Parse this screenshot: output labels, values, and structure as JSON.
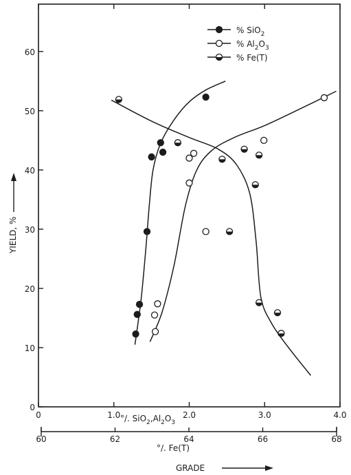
{
  "chart_data": {
    "type": "scatter",
    "title": "",
    "ylabel": "YIELD, %",
    "xlabel": "GRADE",
    "x_axis_primary": {
      "label": "% SiO2, Al2O3",
      "range": [
        0,
        4.0
      ],
      "ticks": [
        {
          "value": 0,
          "label": "0"
        },
        {
          "value": 1.0,
          "label": "1.0"
        },
        {
          "value": 2.0,
          "label": "2.0"
        },
        {
          "value": 3.0,
          "label": "3.0"
        },
        {
          "value": 4.0,
          "label": "4.0"
        }
      ]
    },
    "x_axis_secondary": {
      "label": "% Fe(T)",
      "range": [
        60,
        68
      ],
      "ticks": [
        {
          "value": 60,
          "label": "60"
        },
        {
          "value": 62,
          "label": "62"
        },
        {
          "value": 64,
          "label": "64"
        },
        {
          "value": 66,
          "label": "66"
        },
        {
          "value": 68,
          "label": "68"
        }
      ]
    },
    "y_axis": {
      "range": [
        0,
        68
      ],
      "ticks": [
        {
          "value": 0,
          "label": "0"
        },
        {
          "value": 10,
          "label": "10"
        },
        {
          "value": 20,
          "label": "20"
        },
        {
          "value": 30,
          "label": "30"
        },
        {
          "value": 40,
          "label": "40"
        },
        {
          "value": 50,
          "label": "50"
        },
        {
          "value": 60,
          "label": "60"
        }
      ]
    },
    "legend_position": "top-right",
    "grid": false,
    "legend": [
      {
        "key": "sio2",
        "label": "% SiO2",
        "marker": "filled"
      },
      {
        "key": "al2o3",
        "label": "% Al2O3",
        "marker": "open"
      },
      {
        "key": "fe",
        "label": "% Fe(T)",
        "marker": "half"
      }
    ],
    "series": [
      {
        "key": "sio2",
        "axis": "primary",
        "marker": "filled",
        "points": [
          {
            "x": 1.29,
            "y": 12.3
          },
          {
            "x": 1.31,
            "y": 15.6
          },
          {
            "x": 1.34,
            "y": 17.3
          },
          {
            "x": 1.44,
            "y": 29.6
          },
          {
            "x": 1.5,
            "y": 42.2
          },
          {
            "x": 1.62,
            "y": 44.6
          },
          {
            "x": 1.65,
            "y": 43.0
          },
          {
            "x": 2.22,
            "y": 52.3
          }
        ],
        "curve": [
          {
            "x": 1.28,
            "y": 10.5
          },
          {
            "x": 1.36,
            "y": 18
          },
          {
            "x": 1.42,
            "y": 26
          },
          {
            "x": 1.47,
            "y": 34
          },
          {
            "x": 1.52,
            "y": 40
          },
          {
            "x": 1.62,
            "y": 44.5
          },
          {
            "x": 1.8,
            "y": 48.5
          },
          {
            "x": 2.0,
            "y": 51.5
          },
          {
            "x": 2.22,
            "y": 53.5
          },
          {
            "x": 2.48,
            "y": 55
          }
        ]
      },
      {
        "key": "al2o3",
        "axis": "primary",
        "marker": "open",
        "points": [
          {
            "x": 1.55,
            "y": 12.7
          },
          {
            "x": 1.54,
            "y": 15.5
          },
          {
            "x": 1.58,
            "y": 17.4
          },
          {
            "x": 2.0,
            "y": 37.8
          },
          {
            "x": 2.0,
            "y": 42.0
          },
          {
            "x": 2.06,
            "y": 42.8
          },
          {
            "x": 2.22,
            "y": 29.6
          },
          {
            "x": 2.99,
            "y": 45.0
          },
          {
            "x": 3.79,
            "y": 52.2
          }
        ],
        "curve": [
          {
            "x": 1.48,
            "y": 11
          },
          {
            "x": 1.64,
            "y": 16
          },
          {
            "x": 1.8,
            "y": 24
          },
          {
            "x": 1.95,
            "y": 34
          },
          {
            "x": 2.1,
            "y": 40
          },
          {
            "x": 2.3,
            "y": 43.3
          },
          {
            "x": 2.6,
            "y": 45.5
          },
          {
            "x": 3.0,
            "y": 47.5
          },
          {
            "x": 3.5,
            "y": 50.5
          },
          {
            "x": 3.95,
            "y": 53.3
          }
        ]
      },
      {
        "key": "fe",
        "axis": "secondary",
        "marker": "half",
        "points": [
          {
            "x": 62.1,
            "y": 51.9
          },
          {
            "x": 63.7,
            "y": 44.6
          },
          {
            "x": 64.9,
            "y": 41.8
          },
          {
            "x": 65.1,
            "y": 29.6
          },
          {
            "x": 65.5,
            "y": 43.5
          },
          {
            "x": 65.8,
            "y": 37.5
          },
          {
            "x": 65.9,
            "y": 42.5
          },
          {
            "x": 65.9,
            "y": 17.6
          },
          {
            "x": 66.4,
            "y": 15.9
          },
          {
            "x": 66.5,
            "y": 12.4
          }
        ],
        "curve": [
          {
            "x": 61.9,
            "y": 51.8
          },
          {
            "x": 63.0,
            "y": 48.2
          },
          {
            "x": 64.0,
            "y": 45.5
          },
          {
            "x": 64.8,
            "y": 43.5
          },
          {
            "x": 65.3,
            "y": 40.8
          },
          {
            "x": 65.65,
            "y": 36
          },
          {
            "x": 65.82,
            "y": 28
          },
          {
            "x": 65.95,
            "y": 18.5
          },
          {
            "x": 66.25,
            "y": 14
          },
          {
            "x": 66.7,
            "y": 10
          },
          {
            "x": 67.3,
            "y": 5.3
          }
        ]
      }
    ]
  }
}
